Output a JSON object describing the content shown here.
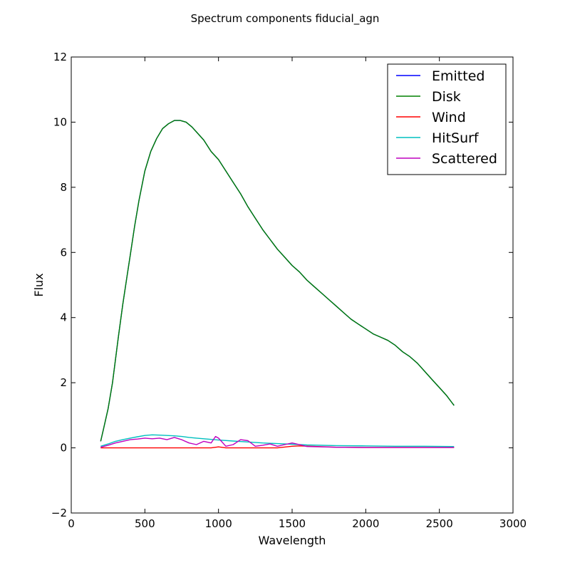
{
  "chart_data": {
    "type": "line",
    "title": "Spectrum components fiducial_agn",
    "xlabel": "Wavelength",
    "ylabel": "Flux",
    "xlim": [
      0,
      3000
    ],
    "ylim": [
      -2,
      12
    ],
    "xticks": [
      0,
      500,
      1000,
      1500,
      2000,
      2500,
      3000
    ],
    "xtick_labels": [
      "0",
      "500",
      "1000",
      "1500",
      "2000",
      "2500",
      "3000"
    ],
    "yticks": [
      -2,
      0,
      2,
      4,
      6,
      8,
      10,
      12
    ],
    "ytick_labels": [
      "−2",
      "0",
      "2",
      "4",
      "6",
      "8",
      "10",
      "12"
    ],
    "grid": false,
    "legend_position": "top-right",
    "series": [
      {
        "name": "Emitted",
        "color": "#0000ff",
        "x": [
          200,
          220,
          250,
          280,
          300,
          320,
          350,
          380,
          400,
          430,
          460,
          500,
          540,
          580,
          620,
          660,
          700,
          740,
          780,
          820,
          860,
          900,
          950,
          1000,
          1050,
          1100,
          1150,
          1200,
          1250,
          1300,
          1350,
          1400,
          1450,
          1500,
          1550,
          1600,
          1650,
          1700,
          1750,
          1800,
          1850,
          1900,
          1950,
          2000,
          2050,
          2100,
          2150,
          2200,
          2250,
          2300,
          2350,
          2400,
          2450,
          2500,
          2550,
          2600
        ],
        "y": [
          0.2,
          0.6,
          1.2,
          2.0,
          2.7,
          3.4,
          4.4,
          5.3,
          5.9,
          6.8,
          7.6,
          8.5,
          9.1,
          9.5,
          9.8,
          9.95,
          10.05,
          10.05,
          10.0,
          9.85,
          9.65,
          9.45,
          9.1,
          8.85,
          8.5,
          8.15,
          7.8,
          7.4,
          7.05,
          6.7,
          6.4,
          6.1,
          5.85,
          5.6,
          5.4,
          5.15,
          4.95,
          4.75,
          4.55,
          4.35,
          4.15,
          3.95,
          3.8,
          3.65,
          3.5,
          3.4,
          3.3,
          3.15,
          2.95,
          2.8,
          2.6,
          2.35,
          2.1,
          1.85,
          1.6,
          1.3
        ]
      },
      {
        "name": "Disk",
        "color": "#008000",
        "x": [
          200,
          220,
          250,
          280,
          300,
          320,
          350,
          380,
          400,
          430,
          460,
          500,
          540,
          580,
          620,
          660,
          700,
          740,
          780,
          820,
          860,
          900,
          950,
          1000,
          1050,
          1100,
          1150,
          1200,
          1250,
          1300,
          1350,
          1400,
          1450,
          1500,
          1550,
          1600,
          1650,
          1700,
          1750,
          1800,
          1850,
          1900,
          1950,
          2000,
          2050,
          2100,
          2150,
          2200,
          2250,
          2300,
          2350,
          2400,
          2450,
          2500,
          2550,
          2600
        ],
        "y": [
          0.2,
          0.6,
          1.2,
          2.0,
          2.7,
          3.4,
          4.4,
          5.3,
          5.9,
          6.8,
          7.6,
          8.5,
          9.1,
          9.5,
          9.8,
          9.95,
          10.05,
          10.05,
          10.0,
          9.85,
          9.65,
          9.45,
          9.1,
          8.85,
          8.5,
          8.15,
          7.8,
          7.4,
          7.05,
          6.7,
          6.4,
          6.1,
          5.85,
          5.6,
          5.4,
          5.15,
          4.95,
          4.75,
          4.55,
          4.35,
          4.15,
          3.95,
          3.8,
          3.65,
          3.5,
          3.4,
          3.3,
          3.15,
          2.95,
          2.8,
          2.6,
          2.35,
          2.1,
          1.85,
          1.6,
          1.3
        ]
      },
      {
        "name": "Wind",
        "color": "#ff0000",
        "x": [
          200,
          400,
          600,
          800,
          950,
          1000,
          1050,
          1200,
          1400,
          1500,
          1550,
          1800,
          2000,
          2200,
          2400,
          2600
        ],
        "y": [
          0.0,
          0.0,
          0.0,
          0.0,
          0.0,
          0.03,
          0.0,
          0.0,
          0.0,
          0.05,
          0.06,
          0.02,
          0.01,
          0.01,
          0.01,
          0.01
        ]
      },
      {
        "name": "HitSurf",
        "color": "#00bfbf",
        "x": [
          200,
          250,
          300,
          350,
          400,
          450,
          500,
          550,
          600,
          650,
          700,
          750,
          800,
          850,
          900,
          950,
          1000,
          1100,
          1200,
          1300,
          1400,
          1500,
          1600,
          1800,
          2000,
          2200,
          2400,
          2600
        ],
        "y": [
          0.05,
          0.12,
          0.2,
          0.25,
          0.3,
          0.34,
          0.38,
          0.4,
          0.39,
          0.38,
          0.37,
          0.35,
          0.32,
          0.3,
          0.28,
          0.26,
          0.24,
          0.21,
          0.18,
          0.15,
          0.13,
          0.11,
          0.09,
          0.07,
          0.06,
          0.05,
          0.05,
          0.04
        ]
      },
      {
        "name": "Scattered",
        "color": "#bf00bf",
        "x": [
          200,
          250,
          300,
          350,
          400,
          450,
          500,
          550,
          600,
          650,
          700,
          750,
          800,
          850,
          900,
          950,
          980,
          1000,
          1050,
          1100,
          1150,
          1200,
          1250,
          1300,
          1350,
          1400,
          1450,
          1500,
          1550,
          1600,
          1800,
          2000,
          2200,
          2400,
          2600
        ],
        "y": [
          0.02,
          0.08,
          0.15,
          0.2,
          0.25,
          0.27,
          0.3,
          0.28,
          0.3,
          0.25,
          0.32,
          0.25,
          0.15,
          0.1,
          0.2,
          0.15,
          0.35,
          0.3,
          0.05,
          0.1,
          0.25,
          0.22,
          0.05,
          0.08,
          0.12,
          0.05,
          0.1,
          0.15,
          0.1,
          0.04,
          0.02,
          0.01,
          0.01,
          0.01,
          0.01
        ]
      }
    ]
  }
}
